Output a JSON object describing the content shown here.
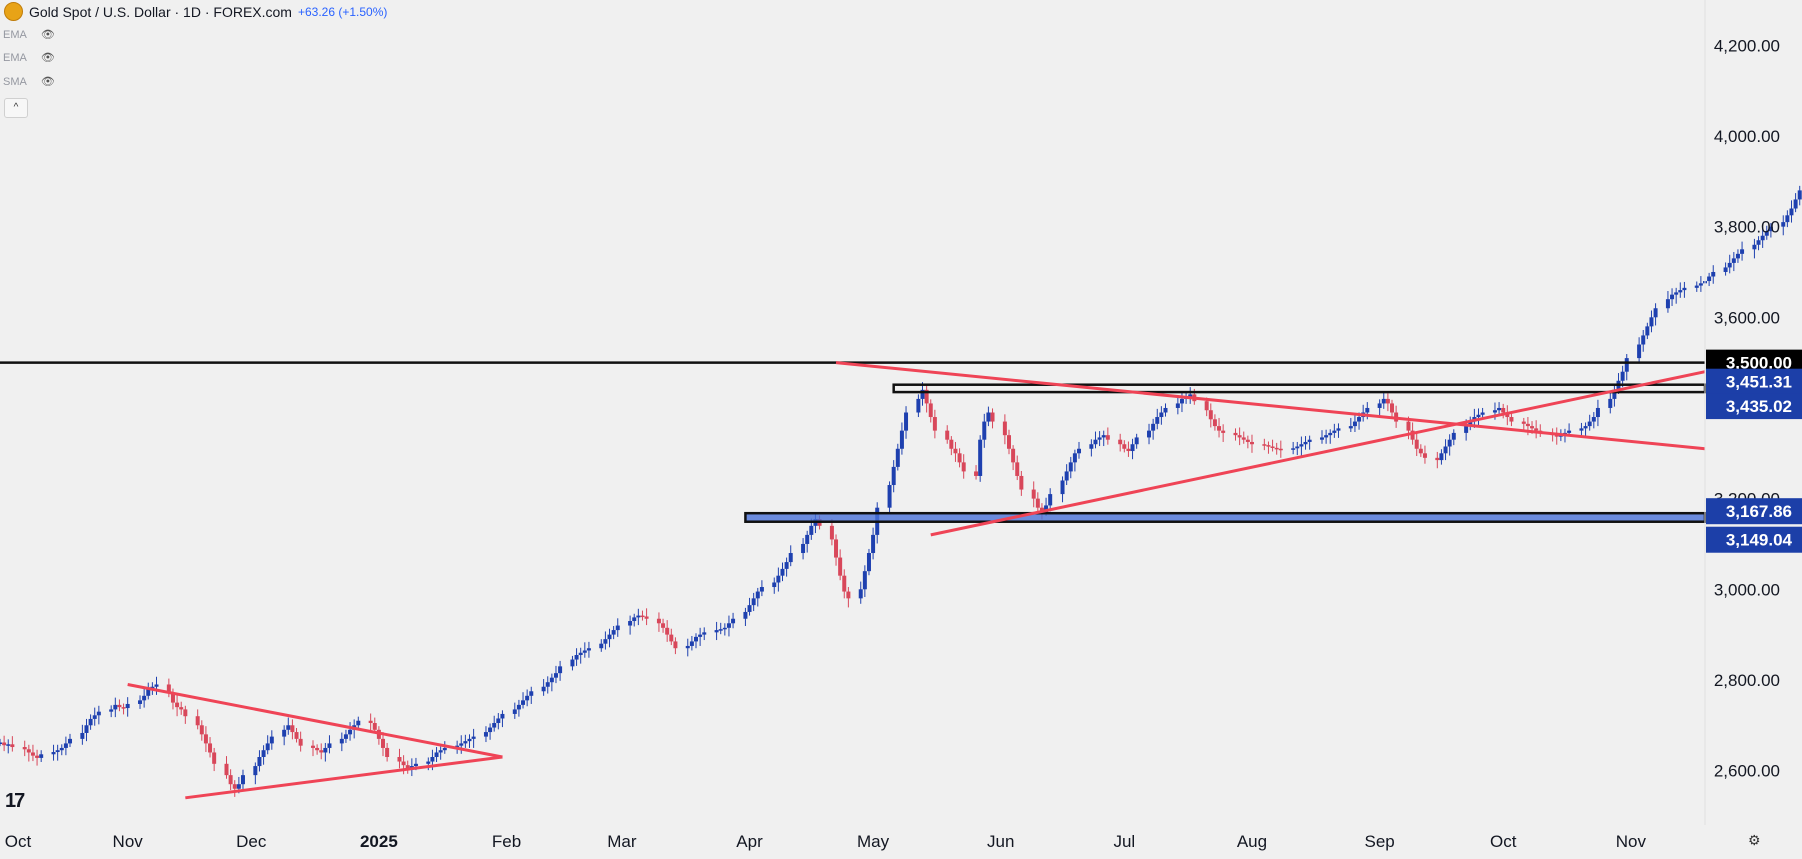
{
  "header": {
    "symbol_title": "Gold Spot / U.S. Dollar · 1D · FOREX.com",
    "change_text": "+63.26 (+1.50%)",
    "collapse_glyph": "^",
    "indicators": [
      {
        "label": "EMA",
        "icon": "eye-off-icon"
      },
      {
        "label": "EMA",
        "icon": "eye-off-icon"
      },
      {
        "label": "SMA",
        "icon": "eye-off-icon"
      }
    ]
  },
  "colors": {
    "up": "#1e40af",
    "down": "#d8475a",
    "trendline": "#ef4456",
    "level_line": "#111111",
    "zone_fill": "#4a72d8",
    "axis_text": "#131722",
    "label_dark_bg": "#000000",
    "label_blue_bg": "#1c3fa8"
  },
  "chart_data": {
    "type": "candlestick",
    "title": "Gold Spot / U.S. Dollar · 1D · FOREX.com",
    "ylim": [
      2480,
      4300
    ],
    "y_ticks": [
      2600,
      2800,
      3000,
      3200,
      3400,
      3600,
      3800,
      4000,
      4200
    ],
    "y_tick_labels": [
      "2,600.00",
      "2,800.00",
      "3,000.00",
      "3,200.00",
      "3,400.00",
      "3,600.00",
      "3,800.00",
      "4,000.00",
      "4,200.00"
    ],
    "x_range": [
      "2024-10-01",
      "2025-11-19"
    ],
    "x_ticks": [
      {
        "date": "2024-10-01",
        "label": "Oct"
      },
      {
        "date": "2024-11-01",
        "label": "Nov"
      },
      {
        "date": "2024-12-01",
        "label": "Dec"
      },
      {
        "date": "2025-01-01",
        "label": "2025"
      },
      {
        "date": "2025-02-01",
        "label": "Feb"
      },
      {
        "date": "2025-03-01",
        "label": "Mar"
      },
      {
        "date": "2025-04-01",
        "label": "Apr"
      },
      {
        "date": "2025-05-01",
        "label": "May"
      },
      {
        "date": "2025-06-01",
        "label": "Jun"
      },
      {
        "date": "2025-07-01",
        "label": "Jul"
      },
      {
        "date": "2025-08-01",
        "label": "Aug"
      },
      {
        "date": "2025-09-01",
        "label": "Sep"
      },
      {
        "date": "2025-10-01",
        "label": "Oct"
      },
      {
        "date": "2025-11-01",
        "label": "Nov"
      }
    ],
    "closes_daily_start": "2024-10-01",
    "closes": [
      2662,
      2656,
      2658,
      2652,
      2647,
      2640,
      2633,
      2628,
      2636,
      2641,
      2645,
      2650,
      2660,
      2670,
      2683,
      2700,
      2714,
      2722,
      2730,
      2735,
      2745,
      2740,
      2738,
      2747,
      2755,
      2765,
      2780,
      2785,
      2790,
      2772,
      2750,
      2740,
      2735,
      2720,
      2700,
      2680,
      2660,
      2640,
      2615,
      2590,
      2570,
      2560,
      2570,
      2590,
      2610,
      2630,
      2645,
      2660,
      2675,
      2690,
      2700,
      2685,
      2670,
      2655,
      2650,
      2645,
      2640,
      2650,
      2660,
      2670,
      2680,
      2690,
      2700,
      2710,
      2705,
      2690,
      2670,
      2650,
      2630,
      2620,
      2612,
      2605,
      2610,
      2615,
      2620,
      2630,
      2640,
      2645,
      2650,
      2655,
      2660,
      2665,
      2670,
      2675,
      2685,
      2695,
      2705,
      2715,
      2725,
      2735,
      2745,
      2755,
      2765,
      2775,
      2785,
      2795,
      2805,
      2815,
      2830,
      2845,
      2855,
      2860,
      2865,
      2870,
      2880,
      2890,
      2900,
      2910,
      2920,
      2930,
      2938,
      2942,
      2940,
      2935,
      2925,
      2915,
      2900,
      2885,
      2870,
      2875,
      2885,
      2895,
      2900,
      2905,
      2910,
      2912,
      2915,
      2925,
      2935,
      2950,
      2965,
      2980,
      2995,
      3005,
      3015,
      3030,
      3045,
      3060,
      3080,
      3100,
      3120,
      3140,
      3155,
      3140,
      3110,
      3070,
      3030,
      2995,
      2980,
      3000,
      3040,
      3080,
      3120,
      3180,
      3230,
      3270,
      3310,
      3350,
      3390,
      3420,
      3440,
      3410,
      3380,
      3350,
      3330,
      3310,
      3300,
      3280,
      3260,
      3250,
      3330,
      3370,
      3390,
      3370,
      3340,
      3310,
      3280,
      3250,
      3220,
      3200,
      3180,
      3170,
      3185,
      3210,
      3240,
      3260,
      3280,
      3300,
      3310,
      3320,
      3330,
      3335,
      3340,
      3330,
      3320,
      3310,
      3305,
      3320,
      3335,
      3350,
      3365,
      3380,
      3390,
      3400,
      3410,
      3420,
      3425,
      3430,
      3415,
      3395,
      3375,
      3360,
      3350,
      3345,
      3340,
      3335,
      3330,
      3325,
      3320,
      3318,
      3315,
      3312,
      3310,
      3308,
      3311,
      3315,
      3320,
      3325,
      3330,
      3335,
      3340,
      3345,
      3350,
      3355,
      3360,
      3370,
      3380,
      3390,
      3400,
      3410,
      3420,
      3410,
      3390,
      3370,
      3350,
      3330,
      3310,
      3300,
      3290,
      3285,
      3300,
      3315,
      3330,
      3345,
      3360,
      3370,
      3380,
      3385,
      3390,
      3395,
      3400,
      3390,
      3380,
      3370,
      3365,
      3360,
      3355,
      3350,
      3345,
      3340,
      3338,
      3340,
      3345,
      3350,
      3355,
      3360,
      3370,
      3380,
      3400,
      3420,
      3440,
      3460,
      3480,
      3510,
      3540,
      3560,
      3580,
      3600,
      3620,
      3640,
      3650,
      3655,
      3660,
      3665,
      3670,
      3675,
      3680,
      3690,
      3700,
      3710,
      3720,
      3730,
      3740,
      3750,
      3760,
      3770,
      3780,
      3790,
      3800,
      3810,
      3825,
      3840,
      3860,
      3880,
      3900,
      3920,
      3940,
      3960,
      3980,
      4000,
      4025,
      4050,
      4000,
      3970,
      3990,
      4020,
      4050,
      4080,
      4120,
      4160,
      4200,
      4240,
      4265
    ],
    "series": [
      {
        "name": "Gold Spot / U.S. Dollar",
        "type": "candlestick"
      }
    ],
    "horizontal_levels": [
      {
        "value": 3500.0,
        "label": "3,500.00",
        "style": "line"
      },
      {
        "value": 3451.31,
        "label": "3,451.31",
        "style": "zone-top"
      },
      {
        "value": 3435.02,
        "label": "3,435.02",
        "style": "zone-bottom"
      },
      {
        "value": 3167.86,
        "label": "3,167.86",
        "style": "zone-top"
      },
      {
        "value": 3149.04,
        "label": "3,149.04",
        "style": "zone-bottom"
      }
    ],
    "zones": [
      {
        "from": 3435.02,
        "to": 3451.31,
        "start": "2025-05-06",
        "fill": "none"
      },
      {
        "from": 3149.04,
        "to": 3167.86,
        "start": "2025-03-31",
        "fill": "blue"
      }
    ],
    "horizontal_line_start": "2024-10-01",
    "trendlines": [
      {
        "p1": [
          "2024-11-01",
          2790
        ],
        "p2": [
          "2025-01-31",
          2630
        ]
      },
      {
        "p1": [
          "2024-11-15",
          2540
        ],
        "p2": [
          "2025-01-31",
          2630
        ]
      },
      {
        "p1": [
          "2025-04-22",
          3500
        ],
        "p2": [
          "2025-11-19",
          3310
        ]
      },
      {
        "p1": [
          "2025-05-15",
          3120
        ],
        "p2": [
          "2025-11-19",
          3480
        ]
      }
    ]
  },
  "footer": {
    "logo_text": "17",
    "settings_icon": "gear-icon"
  }
}
